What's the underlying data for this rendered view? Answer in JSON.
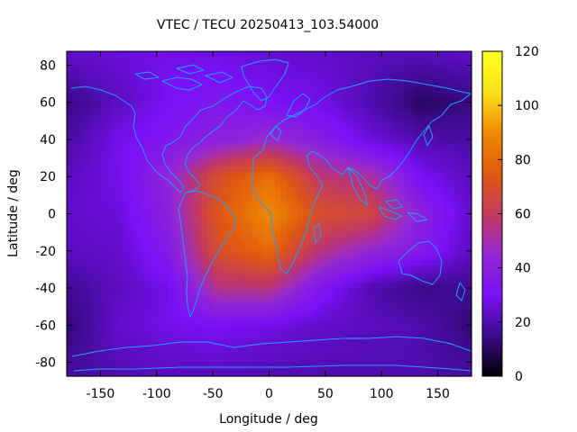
{
  "chart_data": {
    "type": "heatmap",
    "title": "VTEC / TECU 20250413_103.54000",
    "xlabel": "Longitude / deg",
    "ylabel": "Latitude / deg",
    "xlim": [
      -180,
      180
    ],
    "ylim": [
      -87.5,
      87.5
    ],
    "x_ticks": [
      -150,
      -100,
      -50,
      0,
      50,
      100,
      150
    ],
    "y_ticks": [
      -80,
      -60,
      -40,
      -20,
      0,
      20,
      40,
      60,
      80
    ],
    "colorbar": {
      "range": [
        0,
        120
      ],
      "ticks": [
        0,
        20,
        40,
        60,
        80,
        100,
        120
      ],
      "palette": [
        "#000000",
        "#3c0a8c",
        "#7a10f5",
        "#9428d2",
        "#c43a5c",
        "#e05a10",
        "#f08a00",
        "#fce21a",
        "#ffff20"
      ]
    },
    "grid": {
      "lon": [
        -180,
        -135,
        -90,
        -45,
        0,
        45,
        90,
        135,
        180
      ],
      "lat": [
        87.5,
        60,
        40,
        20,
        0,
        -20,
        -40,
        -60,
        -87.5
      ],
      "vtec": [
        [
          24,
          26,
          28,
          27,
          25,
          24,
          22,
          22,
          24
        ],
        [
          14,
          22,
          30,
          34,
          30,
          28,
          20,
          10,
          14
        ],
        [
          18,
          28,
          34,
          40,
          46,
          38,
          26,
          20,
          18
        ],
        [
          22,
          28,
          42,
          70,
          82,
          58,
          52,
          30,
          22
        ],
        [
          24,
          26,
          40,
          74,
          90,
          70,
          66,
          40,
          24
        ],
        [
          22,
          24,
          36,
          70,
          80,
          56,
          44,
          36,
          22
        ],
        [
          16,
          22,
          28,
          55,
          56,
          34,
          20,
          14,
          16
        ],
        [
          12,
          24,
          28,
          30,
          28,
          24,
          22,
          20,
          12
        ],
        [
          18,
          20,
          22,
          22,
          20,
          20,
          20,
          20,
          18
        ]
      ]
    },
    "overlay": "coastlines"
  },
  "colors": {
    "coastline": "#1fa0ff",
    "axis": "#000000"
  }
}
